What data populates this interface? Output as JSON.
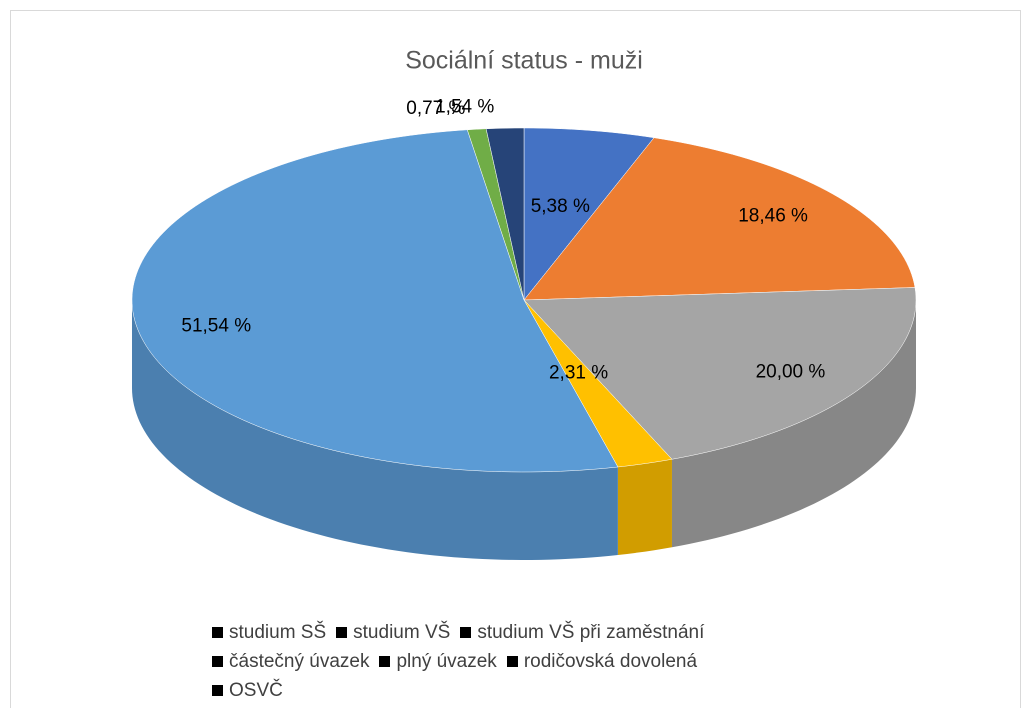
{
  "chart_data": {
    "type": "pie",
    "title": "Sociální status - muži",
    "categories": [
      "studium SŠ",
      "studium VŠ",
      "studium VŠ při zaměstnání",
      "částečný úvazek",
      "plný úvazek",
      "rodičovská dovolená",
      "OSVČ"
    ],
    "values": [
      5.38,
      18.46,
      20.0,
      2.31,
      51.54,
      0.77,
      1.54
    ],
    "value_labels": [
      "5,38 %",
      "18,46 %",
      "20,00 %",
      "2,31 %",
      "51,54 %",
      "0,77 %",
      "1,54 %"
    ],
    "colors": [
      "#4472c4",
      "#ed7d31",
      "#a5a5a5",
      "#ffc000",
      "#5b9bd5",
      "#70ad47",
      "#264478"
    ],
    "legend_marker_color": "#000000",
    "legend": "bottom"
  }
}
